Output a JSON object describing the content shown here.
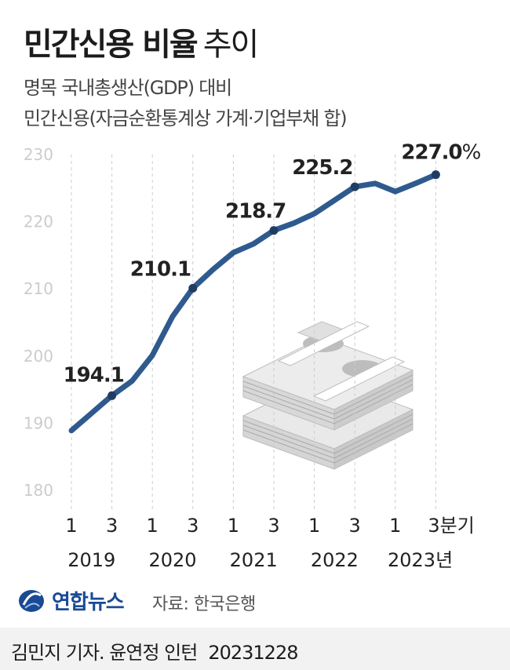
{
  "title_bold": "민간신용 비율",
  "title_light": "추이",
  "subtitle_line1": "명목 국내총생산(GDP) 대비",
  "subtitle_line2": "민간신용(자금순환통계상 가계·기업부채 합)",
  "source": "자료: 한국은행",
  "logo_text": "연합뉴스",
  "credit": "김민지 기자. 윤연정 인턴",
  "date": "20231228",
  "colors": {
    "line": "#2f5a8e",
    "grid": "#cccccc",
    "axis_text": "#cccccc",
    "label": "#222222"
  },
  "chart_data": {
    "type": "line",
    "title": "민간신용 비율 추이",
    "ylim": [
      180,
      230
    ],
    "y_ticks": [
      180,
      190,
      200,
      210,
      220,
      230
    ],
    "x_tick_labels": [
      "1",
      "3",
      "1",
      "3",
      "1",
      "3",
      "1",
      "3",
      "1",
      "3분기"
    ],
    "year_labels": [
      "2019",
      "2020",
      "2021",
      "2022",
      "2023년"
    ],
    "series": [
      {
        "values": [
          188.9,
          191.5,
          194.1,
          196.3,
          200.1,
          205.9,
          210.1,
          212.9,
          215.4,
          216.7,
          218.7,
          219.8,
          221.2,
          223.2,
          225.2,
          225.7,
          224.5,
          225.7,
          227.0
        ]
      }
    ],
    "annotations": [
      {
        "index": 2,
        "label": "194.1"
      },
      {
        "index": 6,
        "label": "210.1"
      },
      {
        "index": 10,
        "label": "218.7"
      },
      {
        "index": 14,
        "label": "225.2"
      },
      {
        "index": 18,
        "label": "227.0",
        "suffix": "%"
      }
    ],
    "grid": "vertical-dashed"
  }
}
